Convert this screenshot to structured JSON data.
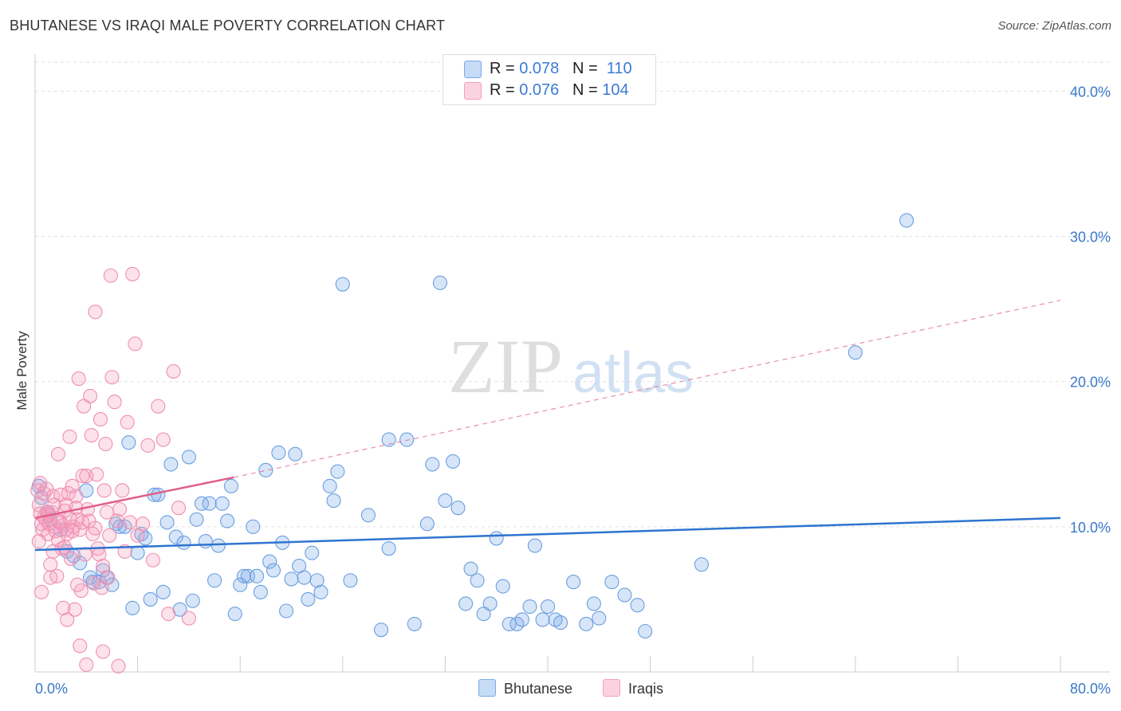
{
  "title": "BHUTANESE VS IRAQI MALE POVERTY CORRELATION CHART",
  "source": "Source: ZipAtlas.com",
  "legend_top": [
    {
      "r_label": "R =",
      "r_value": "0.078",
      "n_label": "N =",
      "n_value": "110"
    },
    {
      "r_label": "R =",
      "r_value": "0.076",
      "n_label": "N =",
      "n_value": "104"
    }
  ],
  "legend_bottom": [
    "Bhutanese",
    "Iraqis"
  ],
  "colors": {
    "bhutanese": "#7aaae8",
    "iraqis": "#f4a0bc",
    "blue_line": "#2e74d0",
    "pink_line": "#e0608a",
    "tick_label": "#3a78c9"
  },
  "chart_data": {
    "type": "scatter",
    "xlabel": "",
    "ylabel": "Male Poverty",
    "xlim": [
      0,
      80
    ],
    "ylim": [
      0,
      42
    ],
    "x_tick_labels": [
      "0.0%",
      "80.0%"
    ],
    "y_ticks": [
      10,
      20,
      30,
      40
    ],
    "y_tick_labels": [
      "10.0%",
      "20.0%",
      "30.0%",
      "40.0%"
    ],
    "watermark": "ZIPatlas",
    "series": [
      {
        "name": "Bhutanese",
        "trend": {
          "x": [
            0,
            80
          ],
          "y": [
            8.4,
            10.6
          ],
          "style": "solid"
        },
        "points": [
          [
            0.3,
            12.8
          ],
          [
            0.5,
            12
          ],
          [
            1,
            11
          ],
          [
            1.2,
            10.5
          ],
          [
            2,
            9.8
          ],
          [
            2.5,
            8.3
          ],
          [
            3,
            8
          ],
          [
            3.5,
            7.5
          ],
          [
            4,
            12.5
          ],
          [
            4.3,
            6.5
          ],
          [
            4.5,
            6.2
          ],
          [
            5,
            6.2
          ],
          [
            5.3,
            7
          ],
          [
            5.6,
            6.5
          ],
          [
            6,
            6
          ],
          [
            6.3,
            10.2
          ],
          [
            6.6,
            10
          ],
          [
            7,
            10
          ],
          [
            7.3,
            15.8
          ],
          [
            7.6,
            4.4
          ],
          [
            8,
            8.2
          ],
          [
            8.3,
            9.5
          ],
          [
            8.6,
            9.2
          ],
          [
            9,
            5
          ],
          [
            9.3,
            12.2
          ],
          [
            9.6,
            12.2
          ],
          [
            10,
            5.5
          ],
          [
            10.3,
            10.3
          ],
          [
            10.6,
            14.3
          ],
          [
            11,
            9.3
          ],
          [
            11.3,
            4.3
          ],
          [
            11.6,
            8.9
          ],
          [
            12,
            14.8
          ],
          [
            12.3,
            4.9
          ],
          [
            12.6,
            10.5
          ],
          [
            13,
            11.6
          ],
          [
            13.3,
            9
          ],
          [
            13.6,
            11.6
          ],
          [
            14,
            6.3
          ],
          [
            14.3,
            8.7
          ],
          [
            14.6,
            11.6
          ],
          [
            15,
            10.4
          ],
          [
            15.3,
            12.8
          ],
          [
            15.6,
            4
          ],
          [
            16,
            6
          ],
          [
            16.3,
            6.6
          ],
          [
            16.6,
            6.6
          ],
          [
            17,
            10
          ],
          [
            17.3,
            6.6
          ],
          [
            17.6,
            5.5
          ],
          [
            18,
            13.9
          ],
          [
            18.3,
            7.6
          ],
          [
            18.6,
            7
          ],
          [
            19,
            15.1
          ],
          [
            19.3,
            8.9
          ],
          [
            19.6,
            4.2
          ],
          [
            20,
            6.4
          ],
          [
            20.3,
            15
          ],
          [
            20.6,
            7.3
          ],
          [
            21,
            6.5
          ],
          [
            21.3,
            5
          ],
          [
            21.6,
            8.2
          ],
          [
            22,
            6.3
          ],
          [
            22.3,
            5.5
          ],
          [
            23,
            12.8
          ],
          [
            23.3,
            11.8
          ],
          [
            23.6,
            13.8
          ],
          [
            24,
            26.7
          ],
          [
            24.6,
            6.3
          ],
          [
            26,
            10.8
          ],
          [
            27,
            2.9
          ],
          [
            27.6,
            8.5
          ],
          [
            27.6,
            16
          ],
          [
            29,
            16
          ],
          [
            29.6,
            3.3
          ],
          [
            30.6,
            10.2
          ],
          [
            31,
            14.3
          ],
          [
            31.6,
            26.8
          ],
          [
            32,
            11.8
          ],
          [
            32.6,
            14.5
          ],
          [
            33,
            11.3
          ],
          [
            33.6,
            4.7
          ],
          [
            34,
            7.1
          ],
          [
            34.5,
            6.3
          ],
          [
            35,
            4
          ],
          [
            35.5,
            4.7
          ],
          [
            36,
            9.2
          ],
          [
            36.5,
            5.9
          ],
          [
            37,
            3.3
          ],
          [
            37.6,
            3.3
          ],
          [
            38,
            3.6
          ],
          [
            38.6,
            4.5
          ],
          [
            39,
            8.7
          ],
          [
            39.6,
            3.6
          ],
          [
            40,
            4.5
          ],
          [
            40.6,
            3.6
          ],
          [
            41,
            3.4
          ],
          [
            42,
            6.2
          ],
          [
            43,
            3.3
          ],
          [
            43.6,
            4.7
          ],
          [
            44,
            3.7
          ],
          [
            45,
            6.2
          ],
          [
            46,
            5.3
          ],
          [
            47,
            4.6
          ],
          [
            47.6,
            2.8
          ],
          [
            52,
            7.4
          ],
          [
            64,
            22
          ],
          [
            68,
            31.1
          ]
        ]
      },
      {
        "name": "Iraqis",
        "trend": {
          "x": [
            0,
            15.5,
            80
          ],
          "y": [
            10.6,
            13.4,
            25.6
          ],
          "style": "solid-then-dashed"
        },
        "points": [
          [
            0.2,
            12.5
          ],
          [
            0.3,
            11.5
          ],
          [
            0.4,
            13
          ],
          [
            0.5,
            10.2
          ],
          [
            0.6,
            9.8
          ],
          [
            0.7,
            12.3
          ],
          [
            0.8,
            10.5
          ],
          [
            0.9,
            11
          ],
          [
            1,
            9.5
          ],
          [
            1.1,
            10.2
          ],
          [
            1.2,
            7.4
          ],
          [
            1.3,
            11
          ],
          [
            1.4,
            12.1
          ],
          [
            1.5,
            10
          ],
          [
            1.6,
            9.7
          ],
          [
            1.7,
            6.6
          ],
          [
            1.8,
            15
          ],
          [
            1.9,
            10.3
          ],
          [
            2,
            12.2
          ],
          [
            2.1,
            8.5
          ],
          [
            2.2,
            10.1
          ],
          [
            2.3,
            8.6
          ],
          [
            2.4,
            9.8
          ],
          [
            2.5,
            9.5
          ],
          [
            2.6,
            12.3
          ],
          [
            2.7,
            16.2
          ],
          [
            2.8,
            7.8
          ],
          [
            2.9,
            9.7
          ],
          [
            3,
            10
          ],
          [
            3.1,
            4.3
          ],
          [
            3.2,
            12.1
          ],
          [
            3.3,
            10.5
          ],
          [
            3.4,
            20.2
          ],
          [
            3.5,
            9.8
          ],
          [
            3.6,
            5.6
          ],
          [
            3.7,
            13.5
          ],
          [
            3.8,
            18.3
          ],
          [
            3.9,
            8.1
          ],
          [
            4,
            13.5
          ],
          [
            4.1,
            11.2
          ],
          [
            4.2,
            10.4
          ],
          [
            4.3,
            19
          ],
          [
            4.4,
            16.3
          ],
          [
            4.5,
            9.5
          ],
          [
            4.6,
            6.1
          ],
          [
            4.7,
            24.8
          ],
          [
            4.8,
            13.6
          ],
          [
            4.9,
            8.5
          ],
          [
            5,
            8.1
          ],
          [
            5.1,
            17.4
          ],
          [
            5.2,
            5.8
          ],
          [
            5.3,
            7.3
          ],
          [
            5.4,
            12.5
          ],
          [
            5.5,
            15.7
          ],
          [
            5.6,
            11
          ],
          [
            5.7,
            6.5
          ],
          [
            5.8,
            9.4
          ],
          [
            5.9,
            27.3
          ],
          [
            6,
            20.3
          ],
          [
            6.2,
            18.6
          ],
          [
            6.4,
            10.4
          ],
          [
            6.6,
            11.2
          ],
          [
            6.8,
            12.5
          ],
          [
            7,
            8.3
          ],
          [
            7.2,
            17.2
          ],
          [
            7.4,
            10.3
          ],
          [
            7.6,
            27.4
          ],
          [
            7.8,
            22.6
          ],
          [
            8,
            9.4
          ],
          [
            8.4,
            10.2
          ],
          [
            8.8,
            15.6
          ],
          [
            9.2,
            7.7
          ],
          [
            9.6,
            18.3
          ],
          [
            10,
            16
          ],
          [
            10.4,
            4
          ],
          [
            10.8,
            20.7
          ],
          [
            11.2,
            11.3
          ],
          [
            12,
            3.7
          ],
          [
            0.5,
            5.5
          ],
          [
            1.2,
            6.5
          ],
          [
            2.5,
            3.6
          ],
          [
            3.5,
            1.8
          ],
          [
            4,
            0.5
          ],
          [
            5.3,
            1.4
          ],
          [
            6.5,
            0.4
          ],
          [
            2.2,
            4.4
          ],
          [
            1.4,
            8.3
          ],
          [
            3.3,
            6
          ],
          [
            2.9,
            12.8
          ],
          [
            0.3,
            9
          ],
          [
            0.7,
            10.7
          ],
          [
            1.5,
            11.5
          ],
          [
            0.9,
            12.6
          ],
          [
            1.8,
            9.1
          ],
          [
            2.4,
            11.5
          ],
          [
            4.7,
            9.9
          ],
          [
            3.7,
            10.3
          ],
          [
            2.7,
            10.6
          ],
          [
            1.1,
            10.8
          ],
          [
            1.9,
            10.4
          ],
          [
            0.4,
            10.9
          ],
          [
            2.3,
            11.1
          ],
          [
            3.2,
            11.3
          ]
        ]
      }
    ]
  }
}
